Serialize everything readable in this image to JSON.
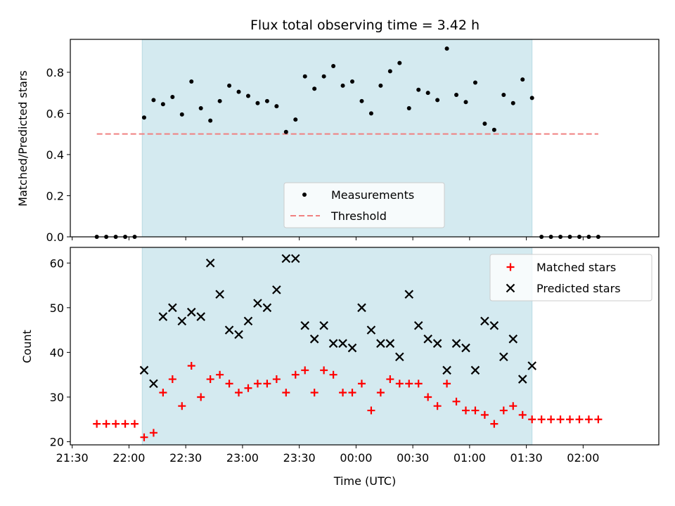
{
  "chart_data": [
    {
      "type": "scatter",
      "title": "Flux total observing time = 3.42 h",
      "xlabel": "",
      "ylabel": "Matched/Predicted stars",
      "ylim": [
        0,
        0.96
      ],
      "yticks": [
        "0.0",
        "0.2",
        "0.4",
        "0.6",
        "0.8"
      ],
      "yticks_values": [
        0.0,
        0.2,
        0.4,
        0.6,
        0.8
      ],
      "shaded_interval": [
        "22:07",
        "01:33"
      ],
      "shade_color": "#d4eaf0",
      "legend_position": "lower center",
      "series": [
        {
          "name": "Measurements",
          "marker": "dot",
          "color": "#000000",
          "x": [
            "21:43",
            "21:48",
            "21:53",
            "21:58",
            "22:03",
            "22:08",
            "22:13",
            "22:18",
            "22:23",
            "22:28",
            "22:33",
            "22:38",
            "22:43",
            "22:48",
            "22:53",
            "22:58",
            "23:03",
            "23:08",
            "23:13",
            "23:18",
            "23:23",
            "23:28",
            "23:33",
            "23:38",
            "23:43",
            "23:48",
            "23:53",
            "23:58",
            "00:03",
            "00:08",
            "00:13",
            "00:18",
            "00:23",
            "00:28",
            "00:33",
            "00:38",
            "00:43",
            "00:48",
            "00:53",
            "00:58",
            "01:03",
            "01:08",
            "01:13",
            "01:18",
            "01:23",
            "01:28",
            "01:33",
            "01:38",
            "01:43",
            "01:48",
            "01:53",
            "01:58",
            "02:03",
            "02:08"
          ],
          "y": [
            0.0,
            0.0,
            0.0,
            0.0,
            0.0,
            0.58,
            0.665,
            0.645,
            0.68,
            0.595,
            0.755,
            0.625,
            0.565,
            0.66,
            0.735,
            0.705,
            0.685,
            0.65,
            0.66,
            0.635,
            0.51,
            0.57,
            0.78,
            0.72,
            0.78,
            0.83,
            0.735,
            0.755,
            0.66,
            0.6,
            0.735,
            0.805,
            0.845,
            0.625,
            0.715,
            0.7,
            0.665,
            0.915,
            0.69,
            0.655,
            0.75,
            0.55,
            0.52,
            0.69,
            0.65,
            0.765,
            0.675,
            0.0,
            0.0,
            0.0,
            0.0,
            0.0,
            0.0,
            0.0
          ]
        },
        {
          "name": "Threshold",
          "style": "dashed",
          "color": "#f08080",
          "x": [
            "21:43",
            "02:08"
          ],
          "y": [
            0.5,
            0.5
          ]
        }
      ]
    },
    {
      "type": "scatter",
      "title": "",
      "xlabel": "Time (UTC)",
      "ylabel": "Count",
      "ylim": [
        19.3,
        63.5
      ],
      "yticks": [
        "20",
        "30",
        "40",
        "50",
        "60"
      ],
      "yticks_values": [
        20,
        30,
        40,
        50,
        60
      ],
      "xticks": [
        "21:30",
        "22:00",
        "22:30",
        "23:00",
        "23:30",
        "00:00",
        "00:30",
        "01:00",
        "01:30",
        "02:00"
      ],
      "xticks_values": [
        "21:30",
        "22:00",
        "22:30",
        "23:00",
        "23:30",
        "00:00",
        "00:30",
        "01:00",
        "01:30",
        "02:00"
      ],
      "xlim": [
        "21:29",
        "02:40"
      ],
      "legend_position": "upper right",
      "series": [
        {
          "name": "Matched stars",
          "marker": "plus",
          "color": "#ff0000",
          "x": [
            "21:43",
            "21:48",
            "21:53",
            "21:58",
            "22:03",
            "22:08",
            "22:13",
            "22:18",
            "22:23",
            "22:28",
            "22:33",
            "22:38",
            "22:43",
            "22:48",
            "22:53",
            "22:58",
            "23:03",
            "23:08",
            "23:13",
            "23:18",
            "23:23",
            "23:28",
            "23:33",
            "23:38",
            "23:43",
            "23:48",
            "23:53",
            "23:58",
            "00:03",
            "00:08",
            "00:13",
            "00:18",
            "00:23",
            "00:28",
            "00:33",
            "00:38",
            "00:43",
            "00:48",
            "00:53",
            "00:58",
            "01:03",
            "01:08",
            "01:13",
            "01:18",
            "01:23",
            "01:28",
            "01:33",
            "01:38",
            "01:43",
            "01:48",
            "01:53",
            "01:58",
            "02:03",
            "02:08"
          ],
          "y": [
            24,
            24,
            24,
            24,
            24,
            21,
            22,
            31,
            34,
            28,
            37,
            30,
            34,
            35,
            33,
            31,
            32,
            33,
            33,
            34,
            31,
            35,
            36,
            31,
            36,
            35,
            31,
            31,
            33,
            27,
            31,
            34,
            33,
            33,
            33,
            30,
            28,
            33,
            29,
            27,
            27,
            26,
            24,
            27,
            28,
            26,
            25,
            25,
            25,
            25,
            25,
            25,
            25,
            25
          ]
        },
        {
          "name": "Predicted stars",
          "marker": "x",
          "color": "#000000",
          "x": [
            "22:08",
            "22:13",
            "22:18",
            "22:23",
            "22:28",
            "22:33",
            "22:38",
            "22:43",
            "22:48",
            "22:53",
            "22:58",
            "23:03",
            "23:08",
            "23:13",
            "23:18",
            "23:23",
            "23:28",
            "23:33",
            "23:38",
            "23:43",
            "23:48",
            "23:53",
            "23:58",
            "00:03",
            "00:08",
            "00:13",
            "00:18",
            "00:23",
            "00:28",
            "00:33",
            "00:38",
            "00:43",
            "00:48",
            "00:53",
            "00:58",
            "01:03",
            "01:08",
            "01:13",
            "01:18",
            "01:23",
            "01:28",
            "01:33"
          ],
          "y": [
            36,
            33,
            48,
            50,
            47,
            49,
            48,
            60,
            53,
            45,
            44,
            47,
            51,
            50,
            54,
            61,
            61,
            46,
            43,
            46,
            42,
            42,
            41,
            50,
            45,
            42,
            42,
            39,
            53,
            46,
            43,
            42,
            36,
            42,
            41,
            36,
            47,
            46,
            39,
            43,
            34,
            37
          ]
        }
      ]
    }
  ]
}
